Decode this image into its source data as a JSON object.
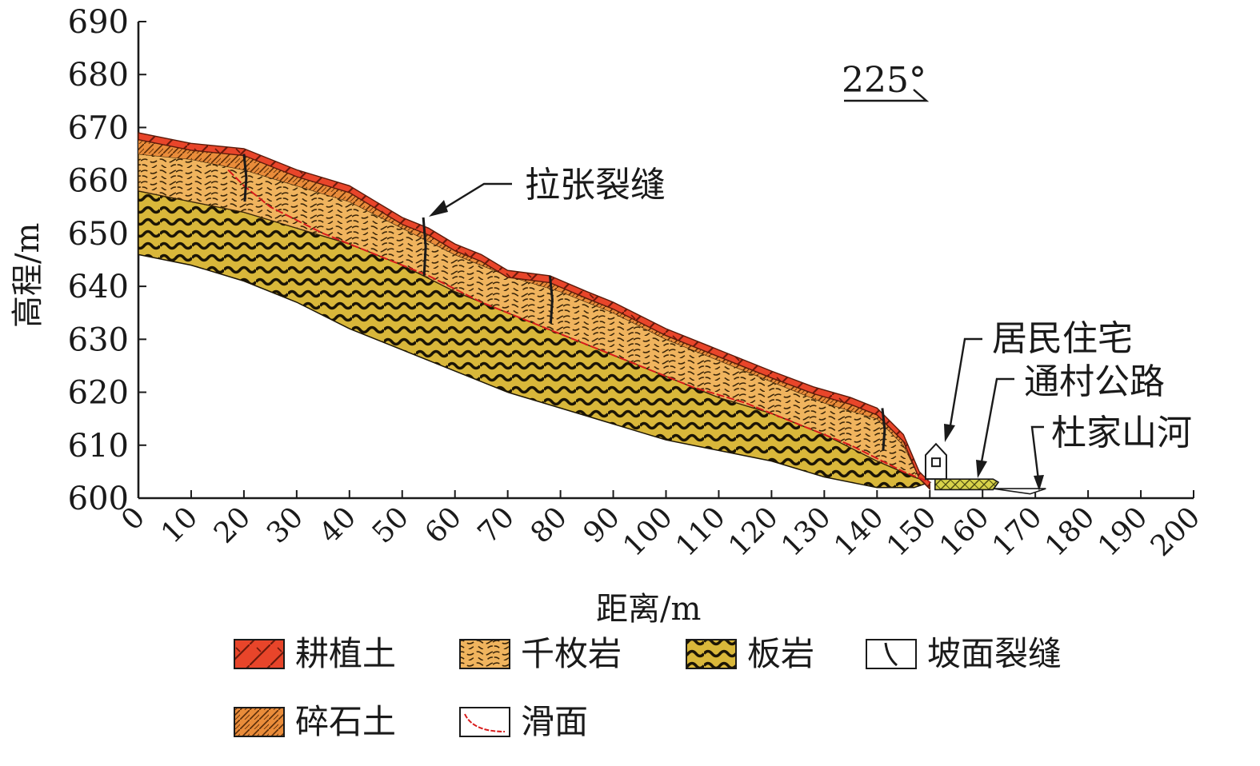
{
  "chart_data": {
    "type": "cross-section",
    "xlabel": "距离/m",
    "ylabel": "高程/m",
    "xlim": [
      0,
      200
    ],
    "ylim": [
      600,
      690
    ],
    "x_ticks": [
      0,
      10,
      20,
      30,
      40,
      50,
      60,
      70,
      80,
      90,
      100,
      110,
      120,
      130,
      140,
      150,
      160,
      170,
      180,
      190,
      200
    ],
    "y_ticks": [
      600,
      610,
      620,
      630,
      640,
      650,
      660,
      670,
      680,
      690
    ],
    "direction_label": "225°",
    "annotations": {
      "crack": "拉张裂缝",
      "house": "居民住宅",
      "road": "通村公路",
      "river": "杜家山河"
    },
    "profiles": {
      "surface": [
        [
          0,
          669
        ],
        [
          10,
          667
        ],
        [
          20,
          666
        ],
        [
          30,
          662
        ],
        [
          40,
          659
        ],
        [
          45,
          656
        ],
        [
          50,
          653
        ],
        [
          55,
          651
        ],
        [
          60,
          648
        ],
        [
          65,
          646
        ],
        [
          70,
          643
        ],
        [
          78,
          642
        ],
        [
          85,
          639
        ],
        [
          90,
          637
        ],
        [
          100,
          632
        ],
        [
          110,
          628
        ],
        [
          120,
          624
        ],
        [
          128,
          621
        ],
        [
          135,
          619
        ],
        [
          140,
          617
        ],
        [
          145,
          612
        ],
        [
          148,
          605
        ],
        [
          150,
          603
        ]
      ],
      "phyllite_top": [
        [
          0,
          665
        ],
        [
          10,
          664
        ],
        [
          20,
          662
        ],
        [
          30,
          659
        ],
        [
          40,
          656
        ],
        [
          50,
          651
        ],
        [
          60,
          646
        ],
        [
          70,
          642
        ],
        [
          80,
          639
        ],
        [
          90,
          635
        ],
        [
          100,
          630
        ],
        [
          110,
          626
        ],
        [
          120,
          622
        ],
        [
          130,
          618
        ],
        [
          140,
          615
        ],
        [
          145,
          610
        ],
        [
          148,
          604
        ],
        [
          150,
          603
        ]
      ],
      "slate_top": [
        [
          0,
          658
        ],
        [
          10,
          656
        ],
        [
          20,
          654
        ],
        [
          30,
          651
        ],
        [
          40,
          648
        ],
        [
          50,
          644
        ],
        [
          60,
          639
        ],
        [
          70,
          635
        ],
        [
          80,
          631
        ],
        [
          90,
          627
        ],
        [
          100,
          623
        ],
        [
          110,
          619
        ],
        [
          120,
          616
        ],
        [
          130,
          612
        ],
        [
          140,
          607
        ],
        [
          147,
          604
        ],
        [
          150,
          603
        ]
      ],
      "base": [
        [
          0,
          646
        ],
        [
          10,
          644
        ],
        [
          20,
          641
        ],
        [
          30,
          637
        ],
        [
          40,
          632
        ],
        [
          50,
          628
        ],
        [
          60,
          624
        ],
        [
          70,
          620
        ],
        [
          80,
          617
        ],
        [
          90,
          614
        ],
        [
          100,
          611
        ],
        [
          110,
          609
        ],
        [
          120,
          607
        ],
        [
          130,
          604
        ],
        [
          140,
          602
        ],
        [
          147,
          602
        ],
        [
          150,
          603
        ]
      ],
      "slip_surface": [
        [
          17,
          662
        ],
        [
          20,
          659
        ],
        [
          25,
          655
        ],
        [
          35,
          650
        ],
        [
          45,
          646
        ],
        [
          55,
          642
        ],
        [
          65,
          637
        ],
        [
          75,
          633
        ],
        [
          85,
          629
        ],
        [
          95,
          625
        ],
        [
          105,
          621
        ],
        [
          115,
          618
        ],
        [
          125,
          614
        ],
        [
          135,
          610
        ],
        [
          145,
          605
        ],
        [
          150,
          603
        ]
      ],
      "cracks": [
        [
          20,
          665,
          656
        ],
        [
          54,
          653,
          642
        ],
        [
          78,
          642,
          633
        ],
        [
          141,
          617,
          609
        ]
      ],
      "road": [
        [
          151,
          603.6
        ],
        [
          162,
          603.6
        ],
        [
          163,
          603
        ],
        [
          162,
          601.6
        ],
        [
          151,
          601.6
        ]
      ],
      "river": [
        [
          162,
          601.8
        ],
        [
          172,
          601.8
        ],
        [
          169,
          600.8
        ]
      ]
    },
    "legend": [
      {
        "label": "耕植土",
        "pattern": "topsoil"
      },
      {
        "label": "千枚岩",
        "pattern": "phyllite"
      },
      {
        "label": "板岩",
        "pattern": "slate"
      },
      {
        "label": "坡面裂缝",
        "pattern": "crack"
      },
      {
        "label": "碎石土",
        "pattern": "gravel"
      },
      {
        "label": "滑面",
        "pattern": "slip"
      }
    ],
    "colors": {
      "topsoil": "#e8452a",
      "gravel": "#e98c3a",
      "phyllite": "#f0b45e",
      "slate": "#d9b73a",
      "slip": "#d81b1b",
      "road": "#d8d24a"
    }
  }
}
